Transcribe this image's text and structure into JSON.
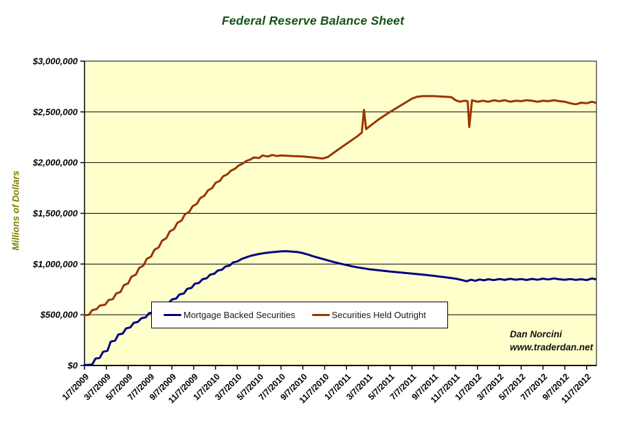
{
  "watermark": {
    "line1": "Dan Norcini",
    "line2": "www.traderdan.net"
  },
  "chart_data": {
    "type": "line",
    "title": "Federal Reserve Balance Sheet",
    "title_color": "#145214",
    "xlabel": "",
    "ylabel": "Millions of Dollars",
    "ylabel_color": "#808000",
    "plot_background": "#FFFFCC",
    "grid": true,
    "gridline_color": "#000000",
    "tick_label_color": "#000000",
    "ylim": [
      0,
      3000000
    ],
    "x_domain": [
      0,
      46.9
    ],
    "legend_position": "inside-bottom-left",
    "y_ticks": [
      {
        "value": 0,
        "label": "$0"
      },
      {
        "value": 500000,
        "label": "$500,000"
      },
      {
        "value": 1000000,
        "label": "$1,000,000"
      },
      {
        "value": 1500000,
        "label": "$1,500,000"
      },
      {
        "value": 2000000,
        "label": "$2,000,000"
      },
      {
        "value": 2500000,
        "label": "$2,500,000"
      },
      {
        "value": 3000000,
        "label": "$3,000,000"
      }
    ],
    "x_ticks": [
      {
        "m": 0,
        "label": "1/7/2009"
      },
      {
        "m": 2,
        "label": "3/7/2009"
      },
      {
        "m": 4,
        "label": "5/7/2009"
      },
      {
        "m": 6,
        "label": "7/7/2009"
      },
      {
        "m": 8,
        "label": "9/7/2009"
      },
      {
        "m": 10,
        "label": "11/7/2009"
      },
      {
        "m": 12,
        "label": "1/7/2010"
      },
      {
        "m": 14,
        "label": "3/7/2010"
      },
      {
        "m": 16,
        "label": "5/7/2010"
      },
      {
        "m": 18,
        "label": "7/7/2010"
      },
      {
        "m": 20,
        "label": "9/7/2010"
      },
      {
        "m": 22,
        "label": "11/7/2010"
      },
      {
        "m": 24,
        "label": "1/7/2011"
      },
      {
        "m": 26,
        "label": "3/7/2011"
      },
      {
        "m": 28,
        "label": "5/7/2011"
      },
      {
        "m": 30,
        "label": "7/7/2011"
      },
      {
        "m": 32,
        "label": "9/7/2011"
      },
      {
        "m": 34,
        "label": "11/7/2011"
      },
      {
        "m": 36,
        "label": "1/7/2012"
      },
      {
        "m": 38,
        "label": "3/7/2012"
      },
      {
        "m": 40,
        "label": "5/7/2012"
      },
      {
        "m": 42,
        "label": "7/7/2012"
      },
      {
        "m": 44,
        "label": "9/7/2012"
      },
      {
        "m": 46,
        "label": "11/7/2012"
      }
    ],
    "series": [
      {
        "name": "Mortgage Backed Securities",
        "color": "#000080",
        "points": [
          [
            0,
            5000
          ],
          [
            0.7,
            8000
          ],
          [
            1.0,
            68000
          ],
          [
            1.4,
            75000
          ],
          [
            1.7,
            135000
          ],
          [
            2.1,
            145000
          ],
          [
            2.4,
            235000
          ],
          [
            2.8,
            245000
          ],
          [
            3.1,
            305000
          ],
          [
            3.5,
            315000
          ],
          [
            3.8,
            365000
          ],
          [
            4.2,
            375000
          ],
          [
            4.5,
            420000
          ],
          [
            4.9,
            430000
          ],
          [
            5.2,
            465000
          ],
          [
            5.6,
            475000
          ],
          [
            5.9,
            515000
          ],
          [
            6.3,
            525000
          ],
          [
            6.6,
            550000
          ],
          [
            7.0,
            560000
          ],
          [
            7.3,
            605000
          ],
          [
            7.7,
            615000
          ],
          [
            8.0,
            650000
          ],
          [
            8.4,
            660000
          ],
          [
            8.7,
            700000
          ],
          [
            9.1,
            710000
          ],
          [
            9.4,
            755000
          ],
          [
            9.8,
            765000
          ],
          [
            10.1,
            805000
          ],
          [
            10.5,
            815000
          ],
          [
            10.8,
            850000
          ],
          [
            11.2,
            860000
          ],
          [
            11.5,
            895000
          ],
          [
            11.9,
            905000
          ],
          [
            12.2,
            935000
          ],
          [
            12.6,
            945000
          ],
          [
            12.9,
            975000
          ],
          [
            13.3,
            985000
          ],
          [
            13.6,
            1015000
          ],
          [
            14.0,
            1025000
          ],
          [
            14.4,
            1050000
          ],
          [
            14.8,
            1065000
          ],
          [
            15.2,
            1080000
          ],
          [
            15.6,
            1090000
          ],
          [
            16.0,
            1100000
          ],
          [
            16.5,
            1108000
          ],
          [
            17.0,
            1115000
          ],
          [
            17.5,
            1120000
          ],
          [
            18.0,
            1125000
          ],
          [
            18.5,
            1127000
          ],
          [
            19.0,
            1122000
          ],
          [
            19.5,
            1118000
          ],
          [
            20.0,
            1108000
          ],
          [
            20.5,
            1092000
          ],
          [
            21.0,
            1075000
          ],
          [
            21.5,
            1060000
          ],
          [
            22.0,
            1045000
          ],
          [
            22.5,
            1030000
          ],
          [
            23.0,
            1015000
          ],
          [
            23.5,
            1002000
          ],
          [
            24.0,
            990000
          ],
          [
            24.5,
            978000
          ],
          [
            25.0,
            968000
          ],
          [
            26.0,
            950000
          ],
          [
            27.0,
            938000
          ],
          [
            28.0,
            926000
          ],
          [
            29.0,
            916000
          ],
          [
            30.0,
            906000
          ],
          [
            31.0,
            896000
          ],
          [
            32.0,
            884000
          ],
          [
            33.0,
            870000
          ],
          [
            34.0,
            856000
          ],
          [
            34.6,
            842000
          ],
          [
            35.0,
            830000
          ],
          [
            35.4,
            845000
          ],
          [
            35.8,
            835000
          ],
          [
            36.2,
            848000
          ],
          [
            36.6,
            840000
          ],
          [
            37.0,
            850000
          ],
          [
            37.5,
            842000
          ],
          [
            38.0,
            852000
          ],
          [
            38.5,
            844000
          ],
          [
            39.0,
            854000
          ],
          [
            39.5,
            846000
          ],
          [
            40.0,
            852000
          ],
          [
            40.5,
            843000
          ],
          [
            41.0,
            853000
          ],
          [
            41.5,
            845000
          ],
          [
            42.0,
            856000
          ],
          [
            42.5,
            848000
          ],
          [
            43.0,
            858000
          ],
          [
            43.5,
            850000
          ],
          [
            44.0,
            845000
          ],
          [
            44.5,
            852000
          ],
          [
            45.0,
            844000
          ],
          [
            45.5,
            850000
          ],
          [
            46.0,
            842000
          ],
          [
            46.5,
            858000
          ],
          [
            46.8,
            850000
          ]
        ]
      },
      {
        "name": "Securities Held Outright",
        "color": "#993300",
        "points": [
          [
            0,
            495000
          ],
          [
            0.4,
            500000
          ],
          [
            0.7,
            545000
          ],
          [
            1.1,
            555000
          ],
          [
            1.4,
            590000
          ],
          [
            1.9,
            600000
          ],
          [
            2.2,
            645000
          ],
          [
            2.6,
            655000
          ],
          [
            2.9,
            710000
          ],
          [
            3.3,
            725000
          ],
          [
            3.6,
            790000
          ],
          [
            4.0,
            810000
          ],
          [
            4.3,
            875000
          ],
          [
            4.7,
            895000
          ],
          [
            5.0,
            960000
          ],
          [
            5.4,
            985000
          ],
          [
            5.7,
            1050000
          ],
          [
            6.1,
            1075000
          ],
          [
            6.4,
            1140000
          ],
          [
            6.8,
            1165000
          ],
          [
            7.1,
            1230000
          ],
          [
            7.5,
            1255000
          ],
          [
            7.8,
            1320000
          ],
          [
            8.2,
            1345000
          ],
          [
            8.5,
            1405000
          ],
          [
            8.9,
            1430000
          ],
          [
            9.2,
            1490000
          ],
          [
            9.6,
            1515000
          ],
          [
            9.9,
            1570000
          ],
          [
            10.3,
            1595000
          ],
          [
            10.6,
            1650000
          ],
          [
            11.0,
            1675000
          ],
          [
            11.3,
            1725000
          ],
          [
            11.7,
            1750000
          ],
          [
            12.0,
            1800000
          ],
          [
            12.4,
            1820000
          ],
          [
            12.7,
            1865000
          ],
          [
            13.1,
            1885000
          ],
          [
            13.4,
            1920000
          ],
          [
            13.8,
            1940000
          ],
          [
            14.1,
            1970000
          ],
          [
            14.5,
            1990000
          ],
          [
            14.8,
            2015000
          ],
          [
            15.2,
            2030000
          ],
          [
            15.5,
            2050000
          ],
          [
            16.0,
            2045000
          ],
          [
            16.3,
            2070000
          ],
          [
            16.8,
            2060000
          ],
          [
            17.2,
            2075000
          ],
          [
            17.6,
            2065000
          ],
          [
            18.0,
            2070000
          ],
          [
            19.0,
            2065000
          ],
          [
            20.0,
            2060000
          ],
          [
            21.0,
            2050000
          ],
          [
            21.8,
            2040000
          ],
          [
            22.3,
            2055000
          ],
          [
            23.0,
            2110000
          ],
          [
            24.0,
            2185000
          ],
          [
            25.0,
            2260000
          ],
          [
            25.4,
            2295000
          ],
          [
            25.6,
            2520000
          ],
          [
            25.8,
            2330000
          ],
          [
            26.2,
            2365000
          ],
          [
            27.0,
            2430000
          ],
          [
            28.0,
            2500000
          ],
          [
            29.0,
            2565000
          ],
          [
            30.0,
            2630000
          ],
          [
            30.5,
            2650000
          ],
          [
            31.0,
            2655000
          ],
          [
            32.0,
            2655000
          ],
          [
            33.0,
            2650000
          ],
          [
            33.6,
            2645000
          ],
          [
            34.0,
            2615000
          ],
          [
            34.4,
            2600000
          ],
          [
            34.8,
            2610000
          ],
          [
            35.1,
            2605000
          ],
          [
            35.25,
            2350000
          ],
          [
            35.5,
            2615000
          ],
          [
            36.0,
            2600000
          ],
          [
            36.5,
            2610000
          ],
          [
            37.0,
            2600000
          ],
          [
            37.5,
            2615000
          ],
          [
            38.0,
            2605000
          ],
          [
            38.5,
            2615000
          ],
          [
            39.0,
            2600000
          ],
          [
            39.5,
            2610000
          ],
          [
            40.0,
            2605000
          ],
          [
            40.5,
            2615000
          ],
          [
            41.0,
            2610000
          ],
          [
            41.5,
            2600000
          ],
          [
            42.0,
            2610000
          ],
          [
            42.5,
            2605000
          ],
          [
            43.0,
            2615000
          ],
          [
            43.5,
            2605000
          ],
          [
            44.0,
            2600000
          ],
          [
            44.5,
            2585000
          ],
          [
            45.0,
            2575000
          ],
          [
            45.5,
            2590000
          ],
          [
            46.0,
            2585000
          ],
          [
            46.5,
            2600000
          ],
          [
            46.8,
            2590000
          ]
        ]
      }
    ]
  }
}
